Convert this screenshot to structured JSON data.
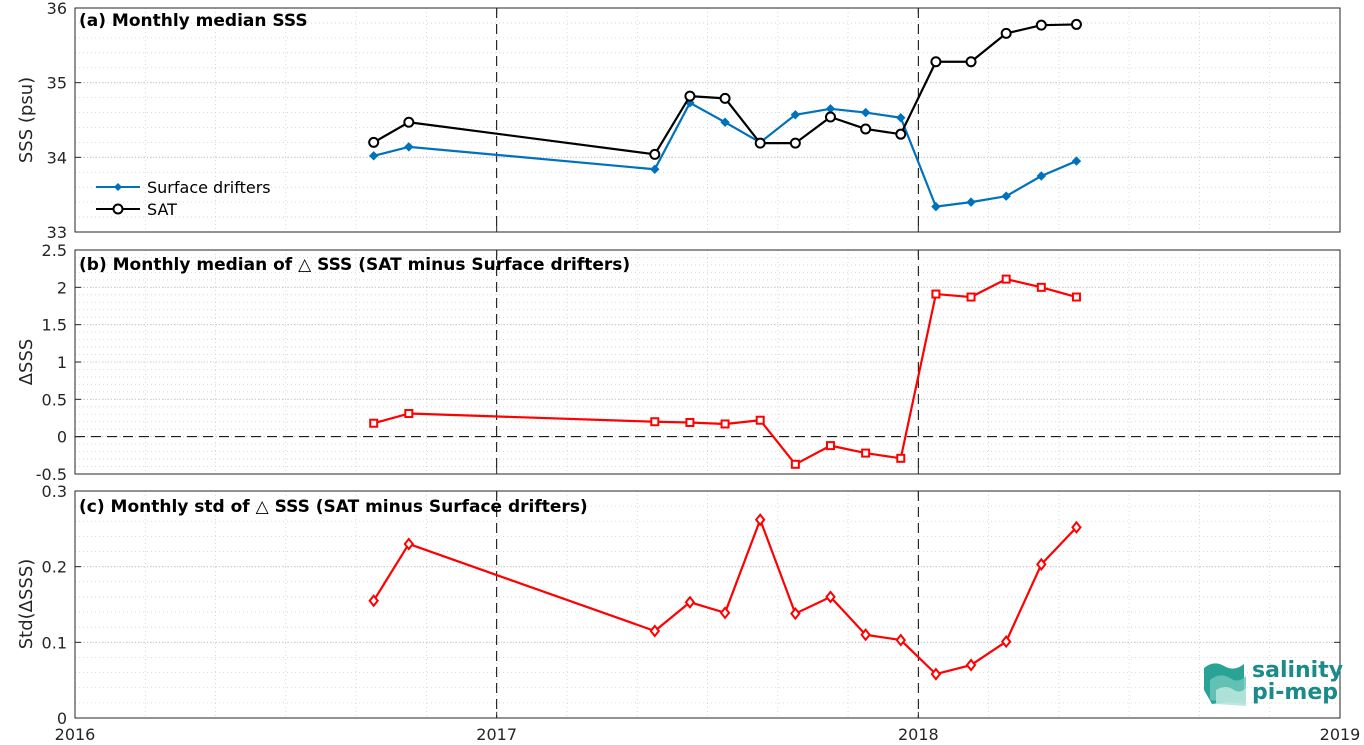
{
  "chart_data": [
    {
      "type": "line",
      "title": "(a) Monthly median SSS",
      "ylabel": "SSS (psu)",
      "xlim": [
        "2016",
        "2019"
      ],
      "ylim": [
        33,
        36
      ],
      "yticks": [
        33,
        34,
        35,
        36
      ],
      "x": [
        "2016-09",
        "2016-10",
        "2017-05",
        "2017-06",
        "2017-07",
        "2017-08",
        "2017-09",
        "2017-10",
        "2017-11",
        "2017-12",
        "2018-01",
        "2018-02",
        "2018-03",
        "2018-04",
        "2018-05"
      ],
      "series": [
        {
          "name": "Surface drifters",
          "color": "#0072BD",
          "marker": "diamond-filled",
          "values": [
            34.02,
            34.14,
            33.84,
            34.73,
            34.47,
            34.2,
            34.57,
            34.65,
            34.6,
            34.53,
            33.34,
            33.4,
            33.48,
            33.75,
            33.95
          ]
        },
        {
          "name": "SAT",
          "color": "#000000",
          "marker": "circle",
          "values": [
            34.2,
            34.47,
            34.04,
            34.82,
            34.79,
            34.19,
            34.19,
            34.54,
            34.38,
            34.31,
            35.28,
            35.28,
            35.66,
            35.77,
            35.78
          ]
        }
      ],
      "legend_position": "lower-left"
    },
    {
      "type": "line",
      "title": "(b) Monthly median of △ SSS (SAT minus Surface drifters)",
      "ylabel": "ΔSSS",
      "ylim": [
        -0.5,
        2.5
      ],
      "yticks": [
        -0.5,
        0,
        0.5,
        1,
        1.5,
        2,
        2.5
      ],
      "x": [
        "2016-09",
        "2016-10",
        "2017-05",
        "2017-06",
        "2017-07",
        "2017-08",
        "2017-09",
        "2017-10",
        "2017-11",
        "2017-12",
        "2018-01",
        "2018-02",
        "2018-03",
        "2018-04",
        "2018-05"
      ],
      "series": [
        {
          "color": "#FF0000",
          "marker": "square",
          "values": [
            0.18,
            0.31,
            0.2,
            0.19,
            0.17,
            0.22,
            -0.37,
            -0.12,
            -0.22,
            -0.29,
            1.91,
            1.87,
            2.11,
            2.0,
            1.87
          ]
        }
      ],
      "reference_line_y": 0
    },
    {
      "type": "line",
      "title": "(c) Monthly std of △ SSS (SAT minus Surface drifters)",
      "ylabel": "Std(ΔSSS)",
      "ylim": [
        0,
        0.3
      ],
      "yticks": [
        0,
        0.1,
        0.2,
        0.3
      ],
      "x": [
        "2016-09",
        "2016-10",
        "2017-05",
        "2017-06",
        "2017-07",
        "2017-08",
        "2017-09",
        "2017-10",
        "2017-11",
        "2017-12",
        "2018-01",
        "2018-02",
        "2018-03",
        "2018-04",
        "2018-05"
      ],
      "series": [
        {
          "color": "#FF0000",
          "marker": "diamond",
          "values": [
            0.155,
            0.23,
            0.115,
            0.153,
            0.139,
            0.262,
            0.138,
            0.16,
            0.11,
            0.103,
            0.058,
            0.07,
            0.101,
            0.203,
            0.252
          ]
        }
      ],
      "xticks": [
        "2016",
        "2017",
        "2018",
        "2019"
      ]
    }
  ],
  "logo": {
    "line1": "salinity",
    "line2": "pi-mep",
    "color": "#1a8a8a"
  },
  "grid": true,
  "vertical_dashed_years": [
    "2017",
    "2018"
  ]
}
